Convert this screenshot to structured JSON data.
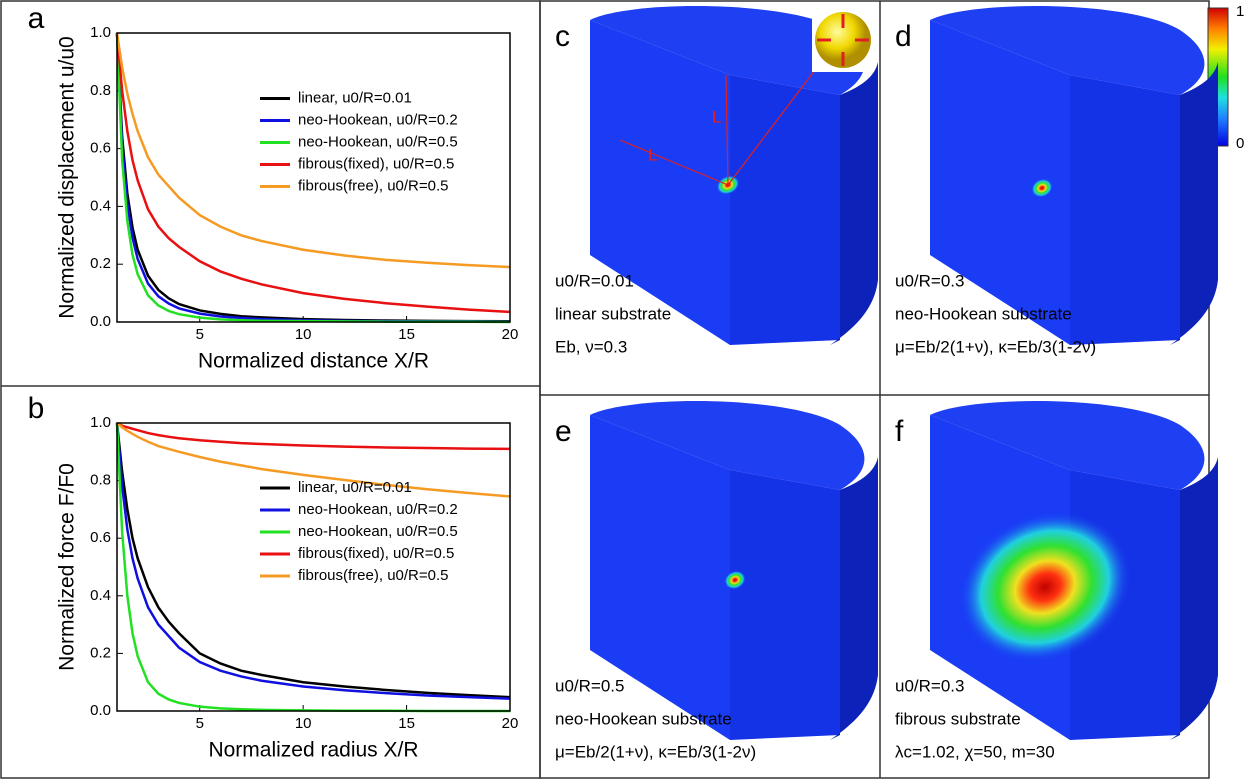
{
  "chart_data": [
    {
      "type": "line",
      "label": "a",
      "xlabel": "Normalized distance X/R",
      "ylabel": "Normalized displacement u/u0",
      "x": [
        1,
        1.25,
        1.5,
        1.75,
        2,
        2.5,
        3,
        3.5,
        4,
        5,
        6,
        7,
        8,
        10,
        12,
        14,
        16,
        18,
        20
      ],
      "xlim": [
        1,
        20
      ],
      "xticks": [
        5,
        10,
        15,
        20
      ],
      "ylim": [
        0,
        1
      ],
      "yticks": [
        {
          "value": 0,
          "label": "0.0"
        },
        0.2,
        0.4,
        0.6,
        0.8,
        {
          "value": 1,
          "label": "1.0"
        }
      ],
      "legend": "center right",
      "series": [
        {
          "name": "linear, u0/R=0.01",
          "color": "#000000",
          "values": [
            1,
            0.64,
            0.444,
            0.327,
            0.25,
            0.16,
            0.111,
            0.082,
            0.062,
            0.04,
            0.028,
            0.02,
            0.016,
            0.01,
            0.007,
            0.005,
            0.004,
            0.003,
            0.0025
          ]
        },
        {
          "name": "neo-Hookean, u0/R=0.2",
          "color": "#1010e0",
          "values": [
            1,
            0.612,
            0.41,
            0.292,
            0.218,
            0.133,
            0.089,
            0.064,
            0.047,
            0.029,
            0.019,
            0.014,
            0.01,
            0.006,
            0.004,
            0.003,
            0.002,
            0.002,
            0.001
          ]
        },
        {
          "name": "neo-Hookean, u0/R=0.5",
          "color": "#22e022",
          "values": [
            1,
            0.56,
            0.349,
            0.233,
            0.165,
            0.092,
            0.057,
            0.038,
            0.027,
            0.015,
            0.009,
            0.006,
            0.004,
            0.003,
            0.002,
            0.001,
            0.001,
            0.001,
            0
          ]
        },
        {
          "name": "fibrous(fixed), u0/R=0.5",
          "color": "#e81010",
          "values": [
            1,
            0.8,
            0.66,
            0.56,
            0.49,
            0.39,
            0.33,
            0.29,
            0.26,
            0.21,
            0.175,
            0.15,
            0.13,
            0.1,
            0.08,
            0.065,
            0.053,
            0.043,
            0.035
          ]
        },
        {
          "name": "fibrous(free), u0/R=0.5",
          "color": "#f59a23",
          "values": [
            1,
            0.88,
            0.79,
            0.72,
            0.66,
            0.57,
            0.51,
            0.47,
            0.43,
            0.37,
            0.33,
            0.3,
            0.28,
            0.25,
            0.23,
            0.215,
            0.205,
            0.197,
            0.19
          ]
        }
      ]
    },
    {
      "type": "line",
      "label": "b",
      "xlabel": "Normalized radius X/R",
      "ylabel": "Normalized force F/F0",
      "x": [
        1,
        1.25,
        1.5,
        1.75,
        2,
        2.5,
        3,
        3.5,
        4,
        5,
        6,
        7,
        8,
        10,
        12,
        14,
        16,
        18,
        20
      ],
      "xlim": [
        1,
        20
      ],
      "xticks": [
        5,
        10,
        15,
        20
      ],
      "ylim": [
        0,
        1
      ],
      "yticks": [
        {
          "value": 0,
          "label": "0.0"
        },
        0.2,
        0.4,
        0.6,
        0.8,
        {
          "value": 1,
          "label": "1.0"
        }
      ],
      "legend": "center right",
      "series": [
        {
          "name": "linear, u0/R=0.01",
          "color": "#000000",
          "values": [
            1,
            0.83,
            0.7,
            0.6,
            0.53,
            0.43,
            0.36,
            0.31,
            0.27,
            0.2,
            0.165,
            0.14,
            0.125,
            0.1,
            0.085,
            0.073,
            0.063,
            0.055,
            0.048
          ]
        },
        {
          "name": "neo-Hookean, u0/R=0.2",
          "color": "#1010e0",
          "values": [
            1,
            0.78,
            0.63,
            0.53,
            0.46,
            0.36,
            0.3,
            0.26,
            0.22,
            0.17,
            0.14,
            0.12,
            0.105,
            0.085,
            0.072,
            0.062,
            0.054,
            0.048,
            0.043
          ]
        },
        {
          "name": "neo-Hookean, u0/R=0.5",
          "color": "#22e022",
          "values": [
            1,
            0.62,
            0.4,
            0.27,
            0.19,
            0.1,
            0.06,
            0.04,
            0.028,
            0.015,
            0.009,
            0.006,
            0.004,
            0.002,
            0.001,
            0.001,
            0,
            0,
            0
          ]
        },
        {
          "name": "fibrous(fixed), u0/R=0.5",
          "color": "#e81010",
          "values": [
            1,
            0.99,
            0.985,
            0.98,
            0.975,
            0.965,
            0.958,
            0.952,
            0.947,
            0.94,
            0.935,
            0.93,
            0.927,
            0.922,
            0.918,
            0.915,
            0.913,
            0.911,
            0.91
          ]
        },
        {
          "name": "fibrous(free), u0/R=0.5",
          "color": "#f59a23",
          "values": [
            1,
            0.985,
            0.973,
            0.962,
            0.952,
            0.935,
            0.92,
            0.91,
            0.9,
            0.882,
            0.866,
            0.853,
            0.84,
            0.82,
            0.802,
            0.785,
            0.77,
            0.757,
            0.745
          ]
        }
      ]
    }
  ],
  "panels": [
    {
      "label": "c",
      "lines": [
        "u0/R=0.01",
        "linear substrate",
        "Eb, ν=0.3"
      ],
      "annotations": [
        "L",
        "L"
      ]
    },
    {
      "label": "d",
      "lines": [
        "u0/R=0.3",
        "neo-Hookean substrate",
        "μ=Eb/2(1+ν),  κ=Eb/3(1-2ν)"
      ]
    },
    {
      "label": "e",
      "lines": [
        "u0/R=0.5",
        "neo-Hookean substrate",
        "μ=Eb/2(1+ν),  κ=Eb/3(1-2ν)"
      ]
    },
    {
      "label": "f",
      "lines": [
        "u0/R=0.3",
        "fibrous substrate",
        "λc=1.02, χ=50, m=30"
      ]
    }
  ],
  "colorbar": {
    "max_label": "1",
    "min_label": "0"
  }
}
